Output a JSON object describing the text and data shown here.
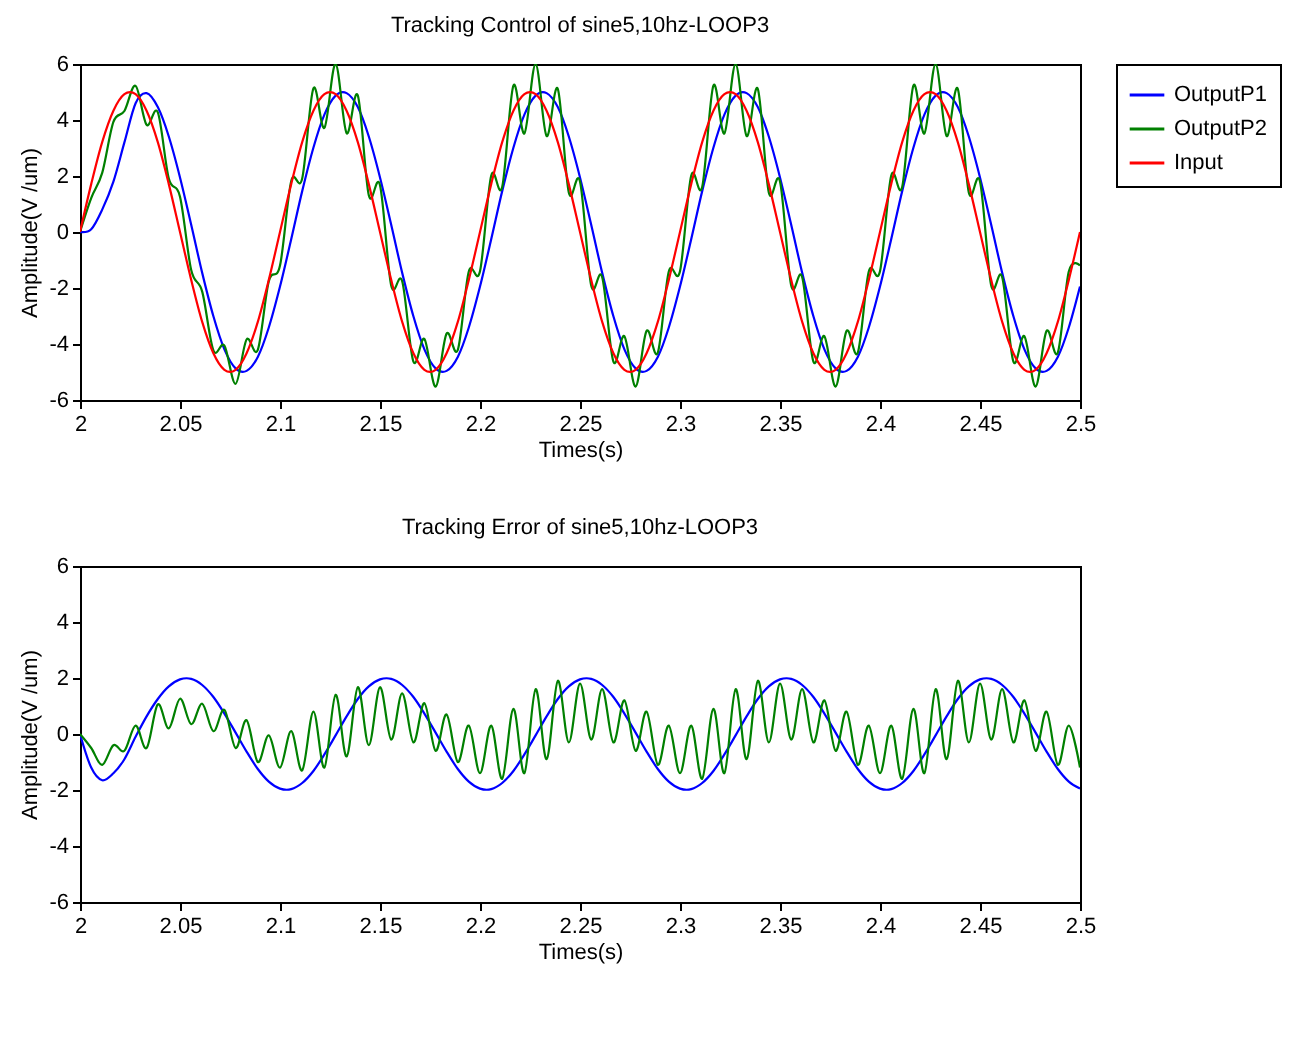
{
  "chart_data": [
    {
      "type": "line",
      "title": "Tracking Control of sine5,10hz-LOOP3",
      "xlabel": "Times(s)",
      "ylabel": "Amplitude(V /um)",
      "x": [
        2,
        2.0056,
        2.0111,
        2.0167,
        2.0222,
        2.0278,
        2.0333,
        2.0389,
        2.0444,
        2.05,
        2.0556,
        2.0611,
        2.0667,
        2.0722,
        2.0778,
        2.0833,
        2.0889,
        2.0944,
        2.1,
        2.1056,
        2.1111,
        2.1167,
        2.1222,
        2.1278,
        2.1333,
        2.1389,
        2.1444,
        2.15,
        2.1556,
        2.1611,
        2.1667,
        2.1722,
        2.1778,
        2.1833,
        2.1889,
        2.1944,
        2.2,
        2.2056,
        2.2111,
        2.2167,
        2.2222,
        2.2278,
        2.2333,
        2.2389,
        2.2444,
        2.25,
        2.2556,
        2.2611,
        2.2667,
        2.2722,
        2.2778,
        2.2833,
        2.2889,
        2.2944,
        2.3,
        2.3056,
        2.3111,
        2.3167,
        2.3222,
        2.3278,
        2.3333,
        2.3389,
        2.3444,
        2.35,
        2.3556,
        2.3611,
        2.3667,
        2.3722,
        2.3778,
        2.3833,
        2.3889,
        2.3944,
        2.4,
        2.4056,
        2.4111,
        2.4167,
        2.4222,
        2.4278,
        2.4333,
        2.4389,
        2.4444,
        2.45,
        2.4556,
        2.4611,
        2.4667,
        2.4722,
        2.4778,
        2.4833,
        2.4889,
        2.4944,
        2.5
      ],
      "series": [
        {
          "name": "OutputP1",
          "color": "#0000ff",
          "values": [
            0,
            0.1,
            0.8,
            1.8,
            3.2,
            4.6,
            4.96,
            4.46,
            3.41,
            1.95,
            0.26,
            -1.46,
            -3.01,
            -4.19,
            -4.87,
            -4.96,
            -4.46,
            -3.41,
            -1.95,
            -0.26,
            1.46,
            3.01,
            4.19,
            4.87,
            4.96,
            4.46,
            3.41,
            1.95,
            0.26,
            -1.46,
            -3.01,
            -4.19,
            -4.87,
            -4.96,
            -4.46,
            -3.41,
            -1.95,
            -0.26,
            1.46,
            3.01,
            4.19,
            4.87,
            4.96,
            4.46,
            3.41,
            1.95,
            0.26,
            -1.46,
            -3.01,
            -4.19,
            -4.87,
            -4.96,
            -4.46,
            -3.41,
            -1.95,
            -0.26,
            1.46,
            3.01,
            4.19,
            4.87,
            4.96,
            4.46,
            3.41,
            1.95,
            0.26,
            -1.46,
            -3.01,
            -4.19,
            -4.87,
            -4.96,
            -4.46,
            -3.41,
            -1.95,
            -0.26,
            1.46,
            3.01,
            4.19,
            4.87,
            4.96,
            4.46,
            3.41,
            1.95,
            0.26,
            -1.46,
            -3.01,
            -4.19,
            -4.87,
            -4.96,
            -4.46,
            -3.41,
            -1.95
          ]
        },
        {
          "name": "OutputP2",
          "color": "#008000",
          "values": [
            0,
            1.21,
            2.11,
            3.93,
            4.32,
            5.22,
            3.83,
            4.27,
            1.91,
            1.26,
            -1.36,
            -2.13,
            -4.23,
            -4.06,
            -5.42,
            -3.84,
            -4.21,
            -1.76,
            -1.2,
            1.81,
            1.91,
            5.13,
            3.72,
            6,
            3.53,
            4.88,
            1.31,
            1.67,
            -1.91,
            -1.76,
            -4.63,
            -3.82,
            -5.52,
            -3.63,
            -4.21,
            -1.41,
            -1.4,
            2.01,
            1.61,
            5.23,
            3.52,
            6,
            3.43,
            5.11,
            1.41,
            1.8,
            -1.91,
            -1.61,
            -4.63,
            -3.72,
            -5.52,
            -3.53,
            -4.31,
            -1.41,
            -1.4,
            2.01,
            1.61,
            5.23,
            3.52,
            6,
            3.43,
            5.11,
            1.41,
            1.8,
            -1.91,
            -1.61,
            -4.63,
            -3.72,
            -5.52,
            -3.53,
            -4.31,
            -1.41,
            -1.4,
            2.01,
            1.61,
            5.23,
            3.52,
            6,
            3.43,
            5.11,
            1.41,
            1.8,
            -1.91,
            -1.61,
            -4.63,
            -3.72,
            -5.52,
            -3.53,
            -4.31,
            -1.41,
            -1.2
          ]
        },
        {
          "name": "Input",
          "color": "#ff0000",
          "values": [
            0,
            1.71,
            3.21,
            4.33,
            4.92,
            4.92,
            4.33,
            3.21,
            1.71,
            0,
            -1.71,
            -3.21,
            -4.33,
            -4.92,
            -4.92,
            -4.33,
            -3.21,
            -1.71,
            0,
            1.71,
            3.21,
            4.33,
            4.92,
            4.92,
            4.33,
            3.21,
            1.71,
            0,
            -1.71,
            -3.21,
            -4.33,
            -4.92,
            -4.92,
            -4.33,
            -3.21,
            -1.71,
            0,
            1.71,
            3.21,
            4.33,
            4.92,
            4.92,
            4.33,
            3.21,
            1.71,
            0,
            -1.71,
            -3.21,
            -4.33,
            -4.92,
            -4.92,
            -4.33,
            -3.21,
            -1.71,
            0,
            1.71,
            3.21,
            4.33,
            4.92,
            4.92,
            4.33,
            3.21,
            1.71,
            0,
            -1.71,
            -3.21,
            -4.33,
            -4.92,
            -4.92,
            -4.33,
            -3.21,
            -1.71,
            0,
            1.71,
            3.21,
            4.33,
            4.92,
            4.92,
            4.33,
            3.21,
            1.71,
            0,
            -1.71,
            -3.21,
            -4.33,
            -4.92,
            -4.92,
            -4.33,
            -3.21,
            -1.71,
            0
          ]
        }
      ],
      "xlim": [
        2,
        2.5
      ],
      "xticks": [
        2,
        2.05,
        2.1,
        2.15,
        2.2,
        2.25,
        2.3,
        2.35,
        2.4,
        2.45,
        2.5
      ],
      "ylim": [
        -6,
        6
      ],
      "yticks": [
        -6,
        -4,
        -2,
        0,
        2,
        4,
        6
      ],
      "legend": "top right",
      "marker": "none"
    },
    {
      "type": "line",
      "title": "Tracking Error of sine5,10hz-LOOP3",
      "xlabel": "Times(s)",
      "ylabel": "Amplitude(V /um)",
      "x": [
        2,
        2.0056,
        2.0111,
        2.0167,
        2.0222,
        2.0278,
        2.0333,
        2.0389,
        2.0444,
        2.05,
        2.0556,
        2.0611,
        2.0667,
        2.0722,
        2.0778,
        2.0833,
        2.0889,
        2.0944,
        2.1,
        2.1056,
        2.1111,
        2.1167,
        2.1222,
        2.1278,
        2.1333,
        2.1389,
        2.1444,
        2.15,
        2.1556,
        2.1611,
        2.1667,
        2.1722,
        2.1778,
        2.1833,
        2.1889,
        2.1944,
        2.2,
        2.2056,
        2.2111,
        2.2167,
        2.2222,
        2.2278,
        2.2333,
        2.2389,
        2.2444,
        2.25,
        2.2556,
        2.2611,
        2.2667,
        2.2722,
        2.2778,
        2.2833,
        2.2889,
        2.2944,
        2.3,
        2.3056,
        2.3111,
        2.3167,
        2.3222,
        2.3278,
        2.3333,
        2.3389,
        2.3444,
        2.35,
        2.3556,
        2.3611,
        2.3667,
        2.3722,
        2.3778,
        2.3833,
        2.3889,
        2.3944,
        2.4,
        2.4056,
        2.4111,
        2.4167,
        2.4222,
        2.4278,
        2.4333,
        2.4389,
        2.4444,
        2.45,
        2.4556,
        2.4611,
        2.4667,
        2.4722,
        2.4778,
        2.4833,
        2.4889,
        2.4944,
        2.5
      ],
      "series": [
        {
          "color": "#0000ff",
          "values": [
            0,
            -1.2,
            -1.65,
            -1.4,
            -0.9,
            -0.1,
            0.63,
            1.25,
            1.7,
            1.95,
            1.97,
            1.75,
            1.32,
            0.73,
            0.05,
            -0.63,
            -1.25,
            -1.7,
            -1.95,
            -1.97,
            -1.75,
            -1.32,
            -0.73,
            -0.05,
            0.63,
            1.25,
            1.7,
            1.95,
            1.97,
            1.75,
            1.32,
            0.73,
            0.05,
            -0.63,
            -1.25,
            -1.7,
            -1.95,
            -1.97,
            -1.75,
            -1.32,
            -0.73,
            -0.05,
            0.63,
            1.25,
            1.7,
            1.95,
            1.97,
            1.75,
            1.32,
            0.73,
            0.05,
            -0.63,
            -1.25,
            -1.7,
            -1.95,
            -1.97,
            -1.75,
            -1.32,
            -0.73,
            -0.05,
            0.63,
            1.25,
            1.7,
            1.95,
            1.97,
            1.75,
            1.32,
            0.73,
            0.05,
            -0.63,
            -1.25,
            -1.7,
            -1.95,
            -1.97,
            -1.75,
            -1.32,
            -0.73,
            -0.05,
            0.63,
            1.25,
            1.7,
            1.95,
            1.97,
            1.75,
            1.32,
            0.73,
            0.05,
            -0.63,
            -1.25,
            -1.7,
            -1.95
          ]
        },
        {
          "color": "#008000",
          "values": [
            0,
            -0.5,
            -1.1,
            -0.4,
            -0.6,
            0.3,
            -0.5,
            1.06,
            0.2,
            1.26,
            0.35,
            1.08,
            0.1,
            0.86,
            -0.5,
            0.49,
            -1,
            -0.05,
            -1.2,
            0.1,
            -1.3,
            0.8,
            -1.2,
            1.4,
            -0.8,
            1.67,
            -0.4,
            1.67,
            -0.2,
            1.45,
            -0.3,
            1.1,
            -0.6,
            0.7,
            -1,
            0.3,
            -1.4,
            0.3,
            -1.6,
            0.9,
            -1.4,
            1.6,
            -0.9,
            1.9,
            -0.3,
            1.8,
            -0.2,
            1.6,
            -0.3,
            1.2,
            -0.6,
            0.8,
            -1.1,
            0.3,
            -1.4,
            0.3,
            -1.6,
            0.9,
            -1.4,
            1.6,
            -0.9,
            1.9,
            -0.3,
            1.8,
            -0.2,
            1.6,
            -0.3,
            1.2,
            -0.6,
            0.8,
            -1.1,
            0.3,
            -1.4,
            0.3,
            -1.6,
            0.9,
            -1.4,
            1.6,
            -0.9,
            1.9,
            -0.3,
            1.8,
            -0.2,
            1.6,
            -0.3,
            1.2,
            -0.6,
            0.8,
            -1.1,
            0.3,
            -1.2
          ]
        }
      ],
      "xlim": [
        2,
        2.5
      ],
      "xticks": [
        2,
        2.05,
        2.1,
        2.15,
        2.2,
        2.25,
        2.3,
        2.35,
        2.4,
        2.45,
        2.5
      ],
      "ylim": [
        -6,
        6
      ],
      "yticks": [
        -6,
        -4,
        -2,
        0,
        2,
        4,
        6
      ],
      "marker": "none"
    }
  ]
}
